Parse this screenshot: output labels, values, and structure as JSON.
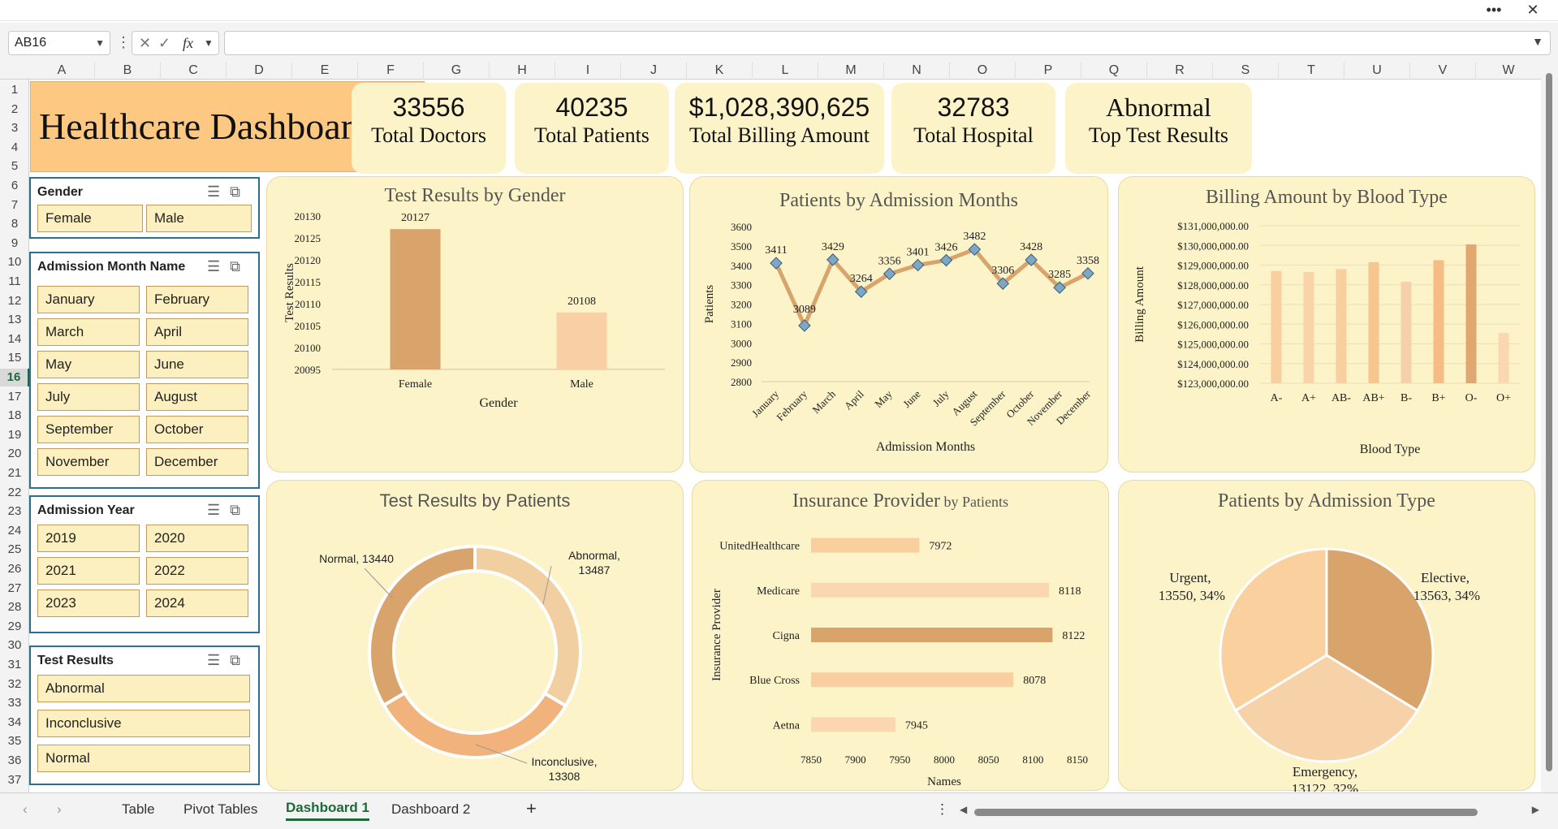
{
  "window": {
    "more_label": "•••",
    "close_label": "✕"
  },
  "formula_bar": {
    "name_box": "AB16",
    "formula": "",
    "cancel_icon": "✕",
    "enter_icon": "✓",
    "fx_label": "fx"
  },
  "columns": [
    "A",
    "B",
    "C",
    "D",
    "E",
    "F",
    "G",
    "H",
    "I",
    "J",
    "K",
    "L",
    "M",
    "N",
    "O",
    "P",
    "Q",
    "R",
    "S",
    "T",
    "U",
    "V",
    "W"
  ],
  "rows": [
    "1",
    "2",
    "3",
    "4",
    "5",
    "6",
    "7",
    "8",
    "9",
    "10",
    "11",
    "12",
    "13",
    "14",
    "15",
    "16",
    "17",
    "18",
    "19",
    "20",
    "21",
    "22",
    "23",
    "24",
    "25",
    "26",
    "27",
    "28",
    "29",
    "30",
    "31",
    "32",
    "33",
    "34",
    "35",
    "36",
    "37"
  ],
  "selected_row": "16",
  "dashboard": {
    "title": "Healthcare Dashboard",
    "kpis": [
      {
        "value": "33556",
        "label": "Total Doctors"
      },
      {
        "value": "40235",
        "label": "Total Patients"
      },
      {
        "value": "$1,028,390,625",
        "label": "Total Billing Amount"
      },
      {
        "value": "32783",
        "label": "Total Hospital"
      },
      {
        "value": "Abnormal",
        "label": "Top Test Results"
      }
    ]
  },
  "slicers": {
    "gender": {
      "title": "Gender",
      "items": [
        "Female",
        "Male"
      ]
    },
    "month": {
      "title": "Admission Month Name",
      "items": [
        "January",
        "February",
        "March",
        "April",
        "May",
        "June",
        "July",
        "August",
        "September",
        "October",
        "November",
        "December"
      ]
    },
    "year": {
      "title": "Admission Year",
      "items": [
        "2019",
        "2020",
        "2021",
        "2022",
        "2023",
        "2024"
      ]
    },
    "test": {
      "title": "Test Results",
      "items": [
        "Abnormal",
        "Inconclusive",
        "Normal"
      ]
    }
  },
  "charts_text": {
    "gender_title": "Test Results by Gender",
    "months_title": "Patients by Admission Months",
    "blood_title": "Billing Amount by Blood Type",
    "patients_title": "Test Results by Patients",
    "insurance_title_main": "Insurance Provider",
    "insurance_title_sub": " by Patients",
    "admission_title": "Patients by Admission Type"
  },
  "chart_data": [
    {
      "type": "bar",
      "title": "Test Results by Gender",
      "xlabel": "Gender",
      "ylabel": "Test Results",
      "categories": [
        "Female",
        "Male"
      ],
      "values": [
        20127,
        20108
      ],
      "ylim": [
        20095,
        20130
      ],
      "yticks": [
        "20095",
        "20100",
        "20105",
        "20110",
        "20115",
        "20120",
        "20125",
        "20130"
      ],
      "colors": [
        "#d9a46b",
        "#f9d0a6"
      ]
    },
    {
      "type": "line",
      "title": "Patients by Admission Months",
      "xlabel": "Admission Months",
      "ylabel": "Patients",
      "categories": [
        "January",
        "February",
        "March",
        "April",
        "May",
        "June",
        "July",
        "August",
        "September",
        "October",
        "November",
        "December"
      ],
      "values": [
        3411,
        3089,
        3429,
        3264,
        3356,
        3401,
        3426,
        3482,
        3306,
        3428,
        3285,
        3358
      ],
      "ylim": [
        2800,
        3600
      ],
      "yticks": [
        "2800",
        "2900",
        "3000",
        "3100",
        "3200",
        "3300",
        "3400",
        "3500",
        "3600"
      ],
      "line_color": "#d9a46b",
      "marker_color": "#7fa7c4"
    },
    {
      "type": "bar",
      "title": "Billing Amount by Blood Type",
      "xlabel": "Blood Type",
      "ylabel": "Billing Amount",
      "categories": [
        "A-",
        "A+",
        "AB-",
        "AB+",
        "B-",
        "B+",
        "O-",
        "O+"
      ],
      "values": [
        128700000,
        128650000,
        128800000,
        129150000,
        128150000,
        129250000,
        130050000,
        125550000
      ],
      "ylim": [
        123000000,
        131000000
      ],
      "yticks": [
        "$123,000,000.00",
        "$124,000,000.00",
        "$125,000,000.00",
        "$126,000,000.00",
        "$127,000,000.00",
        "$128,000,000.00",
        "$129,000,000.00",
        "$130,000,000.00",
        "$131,000,000.00"
      ],
      "colors": [
        "#f9cf9f",
        "#fad3a8",
        "#f9cf9f",
        "#f7c58f",
        "#f6d0ab",
        "#f5bd85",
        "#e0a771",
        "#fad7b1"
      ]
    },
    {
      "type": "pie",
      "subtype": "doughnut",
      "title": "Test Results by Patients",
      "categories": [
        "Abnormal",
        "Inconclusive",
        "Normal"
      ],
      "values": [
        13487,
        13308,
        13440
      ],
      "labels": [
        "Abnormal,",
        "13487",
        "Inconclusive,",
        "13308",
        "Normal, 13440"
      ],
      "colors": [
        "#f2cfa0",
        "#f2b27c",
        "#d9a46b"
      ]
    },
    {
      "type": "bar",
      "orientation": "horizontal",
      "title": "Insurance Provider by Patients",
      "xlabel": "Names",
      "ylabel": "Insurance Provider",
      "categories": [
        "UnitedHealthcare",
        "Medicare",
        "Cigna",
        "Blue Cross",
        "Aetna"
      ],
      "values": [
        7972,
        8118,
        8122,
        8078,
        7945
      ],
      "xlim": [
        7850,
        8150
      ],
      "xticks": [
        "7850",
        "7900",
        "7950",
        "8000",
        "8050",
        "8100",
        "8150"
      ],
      "colors": [
        "#f9cf9f",
        "#fad7b1",
        "#d9a46b",
        "#f9cf9f",
        "#fad7b1"
      ]
    },
    {
      "type": "pie",
      "title": "Patients by Admission Type",
      "categories": [
        "Elective",
        "Emergency",
        "Urgent"
      ],
      "values": [
        13563,
        13122,
        13550
      ],
      "labels": [
        "Elective,",
        "13563, 34%",
        "Emergency,",
        "13122, 32%",
        "Urgent,",
        "13550, 34%"
      ],
      "colors": [
        "#d9a46b",
        "#f7d1a8",
        "#fbd09f"
      ]
    }
  ],
  "tabs": {
    "items": [
      "Table",
      "Pivot Tables",
      "Dashboard 1",
      "Dashboard 2"
    ],
    "active": "Dashboard 1",
    "add_label": "+",
    "prev_icon": "‹",
    "next_icon": "›",
    "more_icon": "⋮"
  }
}
